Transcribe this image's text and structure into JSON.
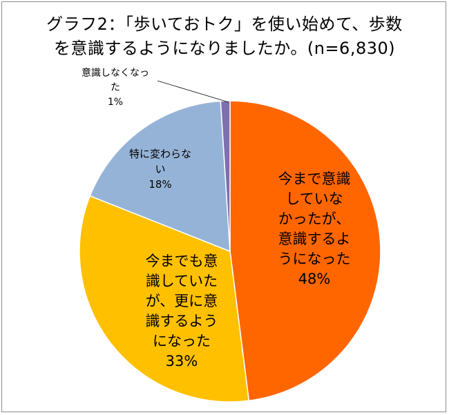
{
  "chart_data": {
    "type": "pie",
    "title_lines": [
      "グラフ2：「歩いておトク」を使い始めて、歩数",
      "を意識するようになりましたか。(n=6,830)"
    ],
    "slices": [
      {
        "label_lines": [
          "今まで意識",
          "していな",
          "かったが、",
          "意識するよ",
          "うになった"
        ],
        "percent_label": "48%",
        "value": 48,
        "color": "#ff6600"
      },
      {
        "label_lines": [
          "今までも意",
          "識していた",
          "が、更に意",
          "識するよう",
          "になった"
        ],
        "percent_label": "33%",
        "value": 33,
        "color": "#ffc000"
      },
      {
        "label_lines": [
          "特に変わらな",
          "い"
        ],
        "percent_label": "18%",
        "value": 18,
        "color": "#95b3d7"
      },
      {
        "label_lines": [
          "意識しなくなっ",
          "た"
        ],
        "percent_label": "1%",
        "value": 1,
        "color": "#7f6fb0"
      }
    ]
  }
}
